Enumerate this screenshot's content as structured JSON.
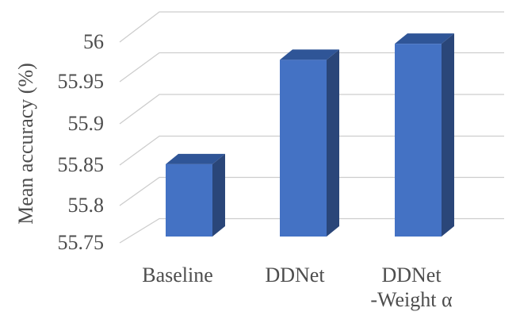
{
  "chart_data": {
    "type": "bar",
    "variant": "3d-column",
    "title": "",
    "xlabel": "",
    "ylabel": "Mean accuracy (%)",
    "categories": [
      "Baseline",
      "DDNet",
      "DDNet\n-Weight α"
    ],
    "values": [
      55.84,
      55.97,
      55.99
    ],
    "series": [
      {
        "name": "Mean accuracy",
        "values": [
          55.84,
          55.97,
          55.99
        ]
      }
    ],
    "ylim": [
      55.75,
      56
    ],
    "ytick_step": 0.05,
    "ytick_values": [
      56,
      55.95,
      55.9,
      55.85,
      55.8,
      55.75
    ],
    "ytick_labels": [
      "56",
      "55.95",
      "55.9",
      "55.85",
      "55.8",
      "55.75"
    ],
    "grid": true,
    "legend_position": "none",
    "colors": {
      "bar_front": "#4472C4",
      "bar_top": "#2F5597",
      "bar_side": "#2A4679",
      "gridline": "#CDCDCD",
      "text": "#4D4D4D",
      "background": "#FFFFFF"
    }
  }
}
